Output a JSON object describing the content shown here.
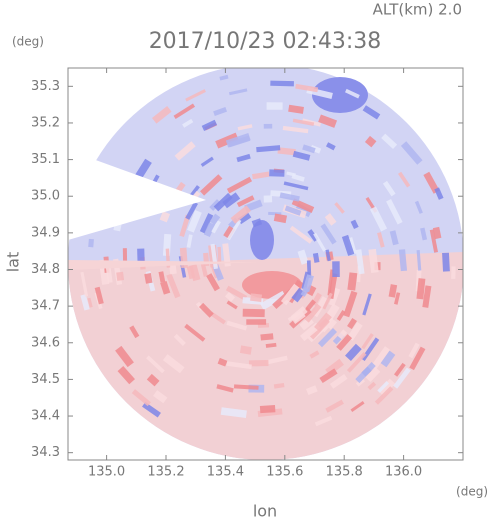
{
  "chart_data": {
    "type": "radar-map",
    "title": "2017/10/23 02:43:38",
    "altitude_label": "ALT(km) 2.0",
    "y_unit": "(deg)",
    "x_unit": "(deg)",
    "x_label": "lon",
    "y_label": "lat",
    "xlim": [
      134.87,
      136.2
    ],
    "ylim": [
      34.28,
      35.35
    ],
    "xticks": [
      {
        "value": 135.0,
        "label": "135.0"
      },
      135.2,
      135.4,
      135.6,
      135.8,
      {
        "value": 136.0,
        "label": "136.0"
      }
    ],
    "yticks": [
      34.3,
      34.4,
      34.5,
      34.6,
      34.7,
      34.8,
      34.9,
      {
        "value": 35.0,
        "label": "35.0"
      },
      35.1,
      35.2,
      35.3
    ],
    "grid": false
  }
}
